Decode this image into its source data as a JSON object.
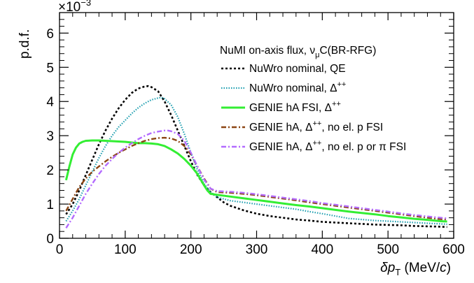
{
  "chart_data": {
    "type": "line",
    "ylabel": "p.d.f.",
    "xlabel_main": "δp",
    "xlabel_sub": "T",
    "xlabel_unit_open": " (MeV/",
    "xlabel_unit_c": "c",
    "xlabel_unit_close": ")",
    "exponent_prefix": "×10",
    "exponent_power": "−3",
    "xlim": [
      0,
      600
    ],
    "ylim": [
      0,
      6.6
    ],
    "x_ticks": [
      0,
      100,
      200,
      300,
      400,
      500,
      600
    ],
    "y_ticks": [
      0,
      1,
      2,
      3,
      4,
      5,
      6
    ],
    "grid": false,
    "legend_position": "top-right",
    "legend_header": {
      "a": "NuMI on-axis flux, ν",
      "sub": "μ",
      "b": "C(BR-RFG)"
    },
    "series": [
      {
        "name_main": "NuWro nominal, QE",
        "name_sup": "",
        "name_tail": "",
        "color": "#000000",
        "dash": "3,3",
        "width": 2.6,
        "x": [
          10,
          20,
          30,
          40,
          50,
          60,
          70,
          80,
          90,
          100,
          110,
          120,
          130,
          135,
          140,
          150,
          160,
          170,
          180,
          190,
          200,
          210,
          220,
          230,
          240,
          250,
          260,
          280,
          300,
          320,
          340,
          360,
          380,
          400,
          420,
          440,
          460,
          480,
          500,
          520,
          540,
          560,
          580,
          590
        ],
        "y": [
          0.7,
          1.0,
          1.4,
          1.85,
          2.3,
          2.75,
          3.15,
          3.5,
          3.8,
          4.05,
          4.25,
          4.38,
          4.44,
          4.45,
          4.42,
          4.3,
          4.0,
          3.6,
          3.15,
          2.7,
          2.25,
          1.85,
          1.55,
          1.35,
          1.2,
          1.05,
          0.95,
          0.82,
          0.72,
          0.65,
          0.6,
          0.55,
          0.52,
          0.48,
          0.46,
          0.44,
          0.42,
          0.4,
          0.39,
          0.38,
          0.36,
          0.35,
          0.34,
          0.33
        ]
      },
      {
        "name_main": "NuWro nominal, Δ",
        "name_sup": "++",
        "name_tail": "",
        "color": "#1f9fb0",
        "dash": "1.5,2",
        "width": 2.2,
        "x": [
          10,
          20,
          30,
          40,
          50,
          60,
          70,
          80,
          90,
          100,
          110,
          120,
          130,
          140,
          150,
          155,
          160,
          170,
          180,
          190,
          200,
          210,
          220,
          230,
          240,
          260,
          280,
          300,
          320,
          340,
          360,
          380,
          400,
          420,
          440,
          460,
          480,
          500,
          520,
          540,
          560,
          580,
          590
        ],
        "y": [
          0.5,
          0.8,
          1.15,
          1.55,
          1.95,
          2.35,
          2.7,
          3.0,
          3.25,
          3.45,
          3.65,
          3.82,
          3.95,
          4.05,
          4.1,
          4.12,
          4.08,
          3.9,
          3.55,
          3.05,
          2.5,
          2.0,
          1.6,
          1.35,
          1.2,
          1.1,
          1.05,
          1.0,
          0.95,
          0.9,
          0.85,
          0.78,
          0.72,
          0.65,
          0.58,
          0.55,
          0.52,
          0.5,
          0.48,
          0.46,
          0.44,
          0.42,
          0.41
        ]
      },
      {
        "name_main": "GENIE hA FSI, Δ",
        "name_sup": "++",
        "name_tail": "",
        "color": "#33ee33",
        "dash": "",
        "width": 3,
        "x": [
          10,
          15,
          20,
          25,
          30,
          35,
          40,
          50,
          60,
          70,
          80,
          90,
          100,
          110,
          120,
          130,
          140,
          150,
          160,
          170,
          180,
          190,
          200,
          210,
          220,
          225,
          230,
          240,
          260,
          280,
          300,
          320,
          340,
          360,
          380,
          400,
          420,
          440,
          460,
          480,
          500,
          520,
          540,
          560,
          580,
          590
        ],
        "y": [
          1.7,
          2.1,
          2.45,
          2.65,
          2.77,
          2.82,
          2.85,
          2.86,
          2.86,
          2.85,
          2.84,
          2.83,
          2.82,
          2.8,
          2.78,
          2.78,
          2.77,
          2.75,
          2.7,
          2.6,
          2.48,
          2.32,
          2.12,
          1.88,
          1.55,
          1.4,
          1.3,
          1.27,
          1.22,
          1.17,
          1.12,
          1.07,
          1.02,
          0.97,
          0.93,
          0.88,
          0.83,
          0.78,
          0.74,
          0.7,
          0.65,
          0.61,
          0.57,
          0.54,
          0.5,
          0.49
        ]
      },
      {
        "name_main": "GENIE hA, Δ",
        "name_sup": "++",
        "name_tail": ", no el. p FSI",
        "color": "#8b4513",
        "dash": "7,3,2,3",
        "width": 2.4,
        "x": [
          10,
          20,
          30,
          40,
          50,
          60,
          70,
          80,
          90,
          100,
          110,
          120,
          130,
          140,
          150,
          160,
          170,
          180,
          190,
          200,
          210,
          220,
          230,
          240,
          260,
          280,
          300,
          320,
          340,
          360,
          380,
          400,
          420,
          440,
          460,
          480,
          500,
          520,
          540,
          560,
          580,
          590
        ],
        "y": [
          0.8,
          1.15,
          1.5,
          1.75,
          1.95,
          2.1,
          2.25,
          2.38,
          2.5,
          2.6,
          2.7,
          2.78,
          2.85,
          2.9,
          2.93,
          2.94,
          2.92,
          2.85,
          2.7,
          2.45,
          2.1,
          1.75,
          1.45,
          1.35,
          1.33,
          1.3,
          1.26,
          1.21,
          1.16,
          1.11,
          1.05,
          1.0,
          0.95,
          0.9,
          0.85,
          0.8,
          0.75,
          0.7,
          0.65,
          0.6,
          0.56,
          0.55
        ]
      },
      {
        "name_main": "GENIE hA, Δ",
        "name_sup": "++",
        "name_tail": ", no el. p or π FSI",
        "color": "#b36bff",
        "dash": "7,3,2,3",
        "width": 2.4,
        "x": [
          10,
          20,
          30,
          40,
          50,
          60,
          70,
          80,
          90,
          100,
          110,
          120,
          130,
          140,
          150,
          160,
          165,
          170,
          180,
          190,
          200,
          210,
          220,
          230,
          240,
          260,
          280,
          300,
          320,
          340,
          360,
          380,
          400,
          420,
          440,
          460,
          480,
          500,
          520,
          540,
          560,
          580,
          590
        ],
        "y": [
          0.3,
          0.6,
          0.95,
          1.3,
          1.6,
          1.88,
          2.12,
          2.32,
          2.5,
          2.65,
          2.78,
          2.9,
          3.0,
          3.08,
          3.12,
          3.15,
          3.15,
          3.13,
          3.05,
          2.85,
          2.5,
          2.1,
          1.72,
          1.45,
          1.38,
          1.36,
          1.33,
          1.29,
          1.24,
          1.19,
          1.14,
          1.09,
          1.03,
          0.98,
          0.93,
          0.88,
          0.83,
          0.78,
          0.73,
          0.68,
          0.64,
          0.6,
          0.58
        ]
      }
    ]
  }
}
